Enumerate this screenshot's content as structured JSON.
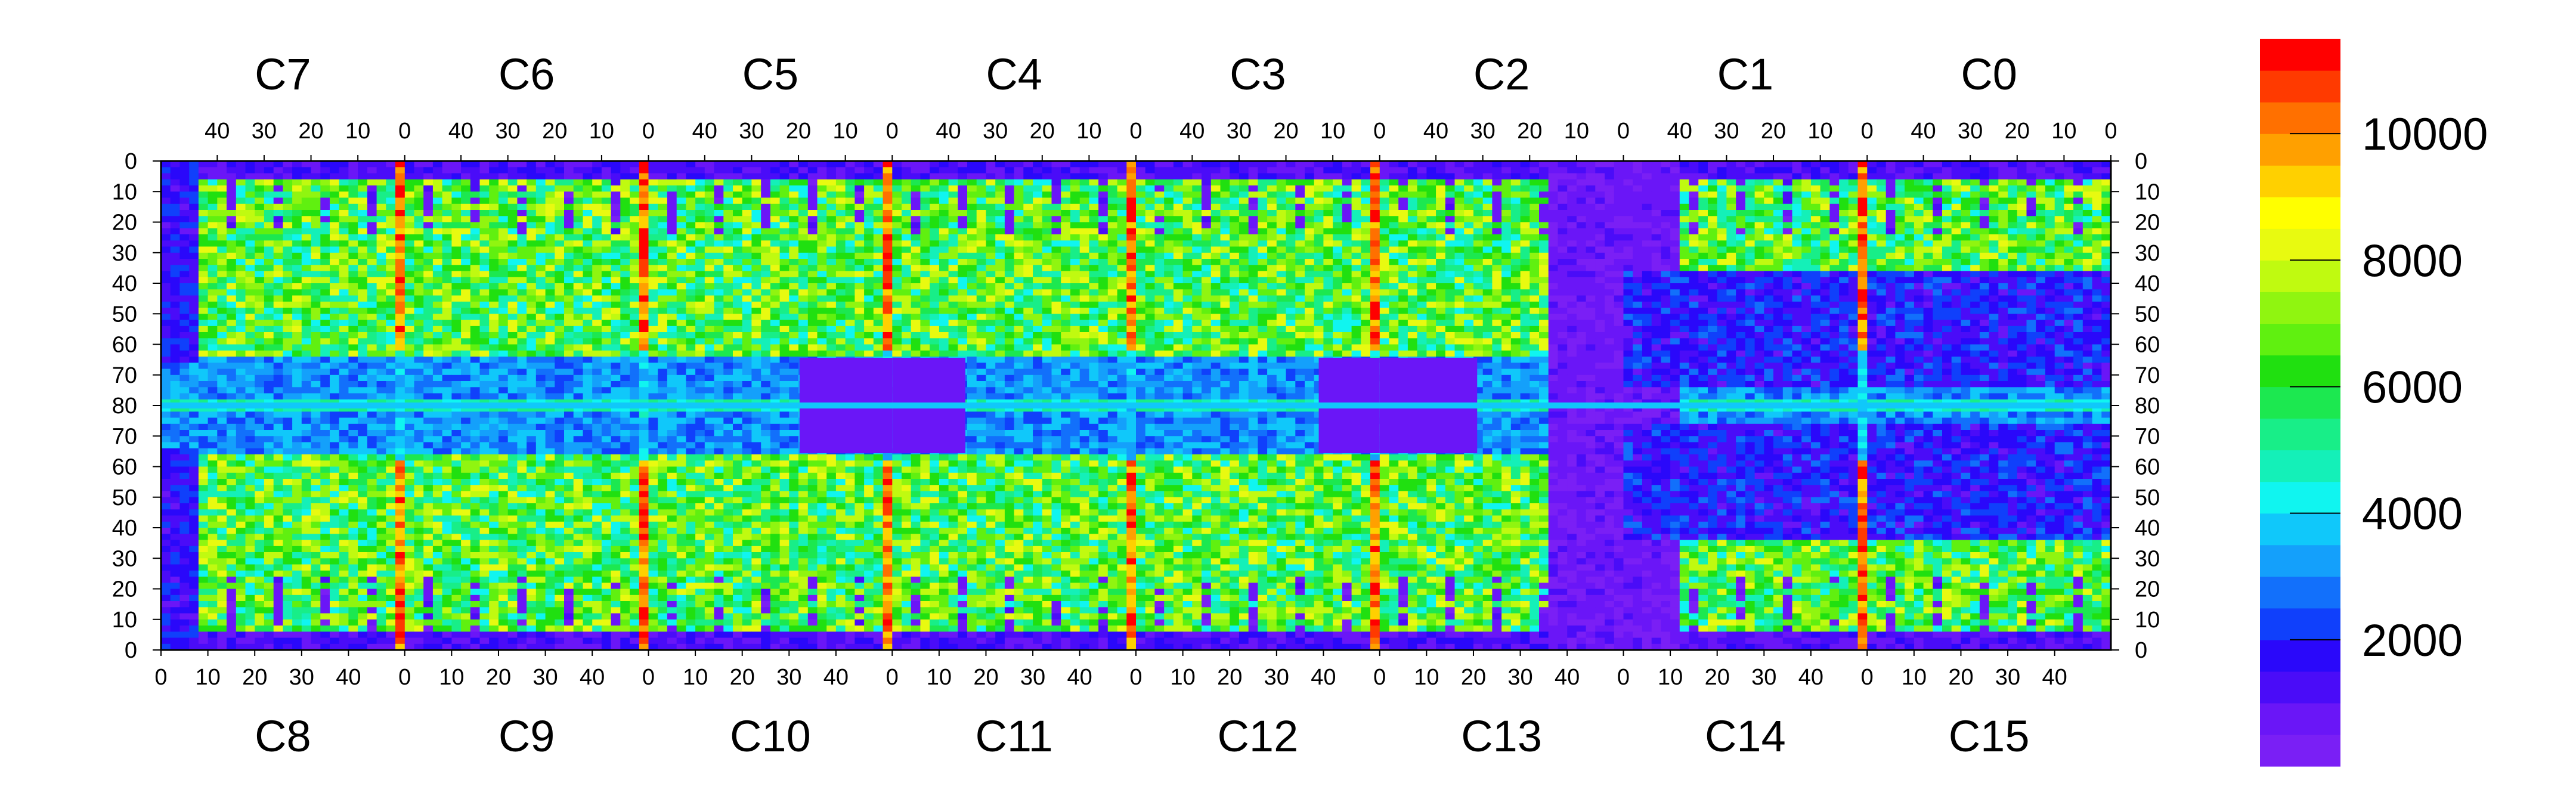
{
  "chart_data": {
    "type": "heatmap",
    "title": "",
    "xlabel": "",
    "ylabel": "",
    "chips_top": [
      "C7",
      "C6",
      "C5",
      "C4",
      "C3",
      "C2",
      "C1",
      "C0"
    ],
    "chips_bottom": [
      "C8",
      "C9",
      "C10",
      "C11",
      "C12",
      "C13",
      "C14",
      "C15"
    ],
    "x_ticks_top": [
      "40",
      "30",
      "20",
      "10",
      "0"
    ],
    "x_ticks_bottom": [
      "0",
      "10",
      "20",
      "30",
      "40"
    ],
    "y_ticks_left": [
      "0",
      "10",
      "20",
      "30",
      "40",
      "50",
      "60",
      "70",
      "80",
      "70",
      "60",
      "50",
      "40",
      "30",
      "20",
      "10",
      "0"
    ],
    "y_ticks_right": [
      "0",
      "10",
      "20",
      "30",
      "40",
      "50",
      "60",
      "70",
      "80",
      "70",
      "60",
      "50",
      "40",
      "30",
      "20",
      "10",
      "0"
    ],
    "chip_columns": 52,
    "chip_rows": 80,
    "z_range": [
      0,
      11500
    ],
    "colorbar_ticks": [
      "2000",
      "4000",
      "6000",
      "8000",
      "10000"
    ],
    "colorbar_colors": [
      "#7a1ff5",
      "#6a16f7",
      "#4a0cf8",
      "#2a08fa",
      "#1040fb",
      "#1270fb",
      "#14a0fb",
      "#10c8fa",
      "#10f5f0",
      "#14f0b8",
      "#18ee88",
      "#1ce850",
      "#20e010",
      "#60f010",
      "#90f510",
      "#c0fa10",
      "#e8fa10",
      "#ffff00",
      "#ffd000",
      "#ffa000",
      "#ff7000",
      "#ff3a00",
      "#ff0000"
    ]
  }
}
